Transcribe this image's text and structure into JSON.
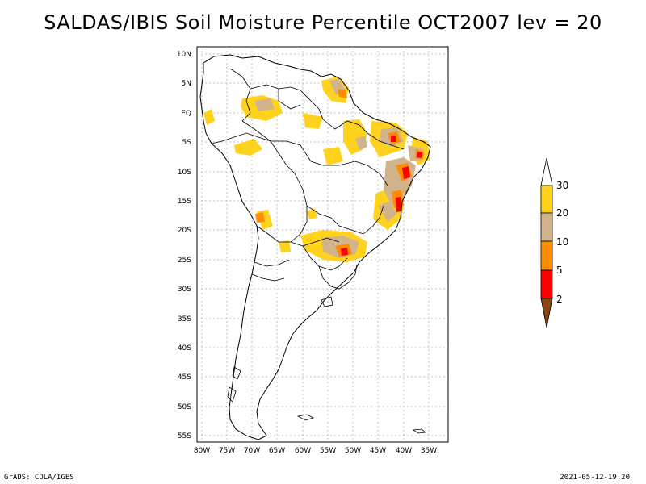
{
  "title": "SALDAS/IBIS Soil Moisture Percentile OCT2007 lev = 20",
  "footer": {
    "left": "GrADS: COLA/IGES",
    "right": "2021-05-12-19:20"
  },
  "map": {
    "lat_labels": [
      "10N",
      "5N",
      "EQ",
      "5S",
      "10S",
      "15S",
      "20S",
      "25S",
      "30S",
      "35S",
      "40S",
      "45S",
      "50S",
      "55S"
    ],
    "lon_labels": [
      "80W",
      "75W",
      "70W",
      "65W",
      "60W",
      "55W",
      "50W",
      "45W",
      "40W",
      "35W"
    ],
    "gridline_color": "#b0b0b0",
    "coast_color": "#000000"
  },
  "legend": {
    "levels": [
      "30",
      "20",
      "10",
      "5",
      "2"
    ],
    "colors": {
      "above": "#ffffff",
      "c20_30": "#ffd21e",
      "c10_20": "#d2b48c",
      "c5_10": "#ff8c00",
      "c2_5": "#ff0000",
      "below": "#8b4513"
    }
  }
}
